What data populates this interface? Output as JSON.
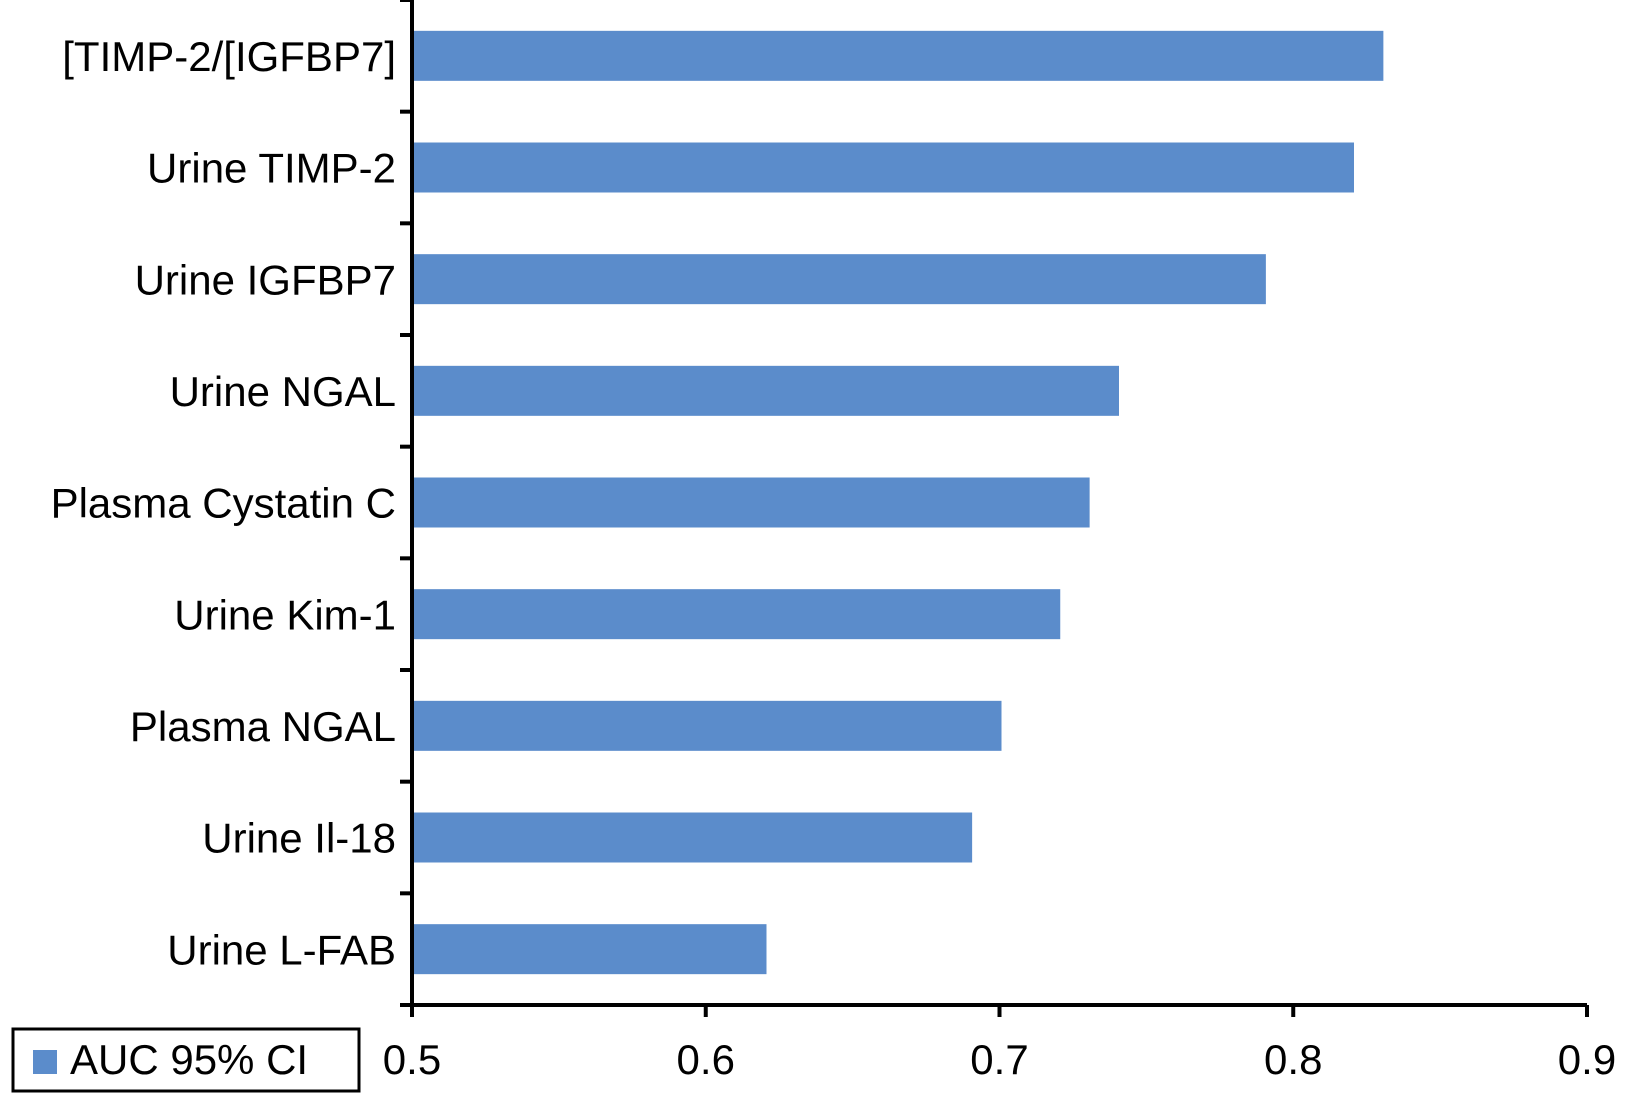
{
  "chart_data": {
    "type": "bar",
    "orientation": "horizontal",
    "categories": [
      "[TIMP-2/[IGFBP7]",
      "Urine TIMP-2",
      "Urine IGFBP7",
      "Urine NGAL",
      "Plasma Cystatin C",
      "Urine Kim-1",
      "Plasma NGAL",
      "Urine Il-18",
      "Urine L-FAB"
    ],
    "series": [
      {
        "name": "AUC 95% CI",
        "color": "#5b8ccb",
        "values": [
          0.83,
          0.82,
          0.79,
          0.74,
          0.73,
          0.72,
          0.7,
          0.69,
          0.62
        ]
      }
    ],
    "xlim": [
      0.5,
      0.9
    ],
    "xticks": [
      0.5,
      0.6,
      0.7,
      0.8,
      0.9
    ],
    "grid": false,
    "legend": "bottom-left"
  }
}
